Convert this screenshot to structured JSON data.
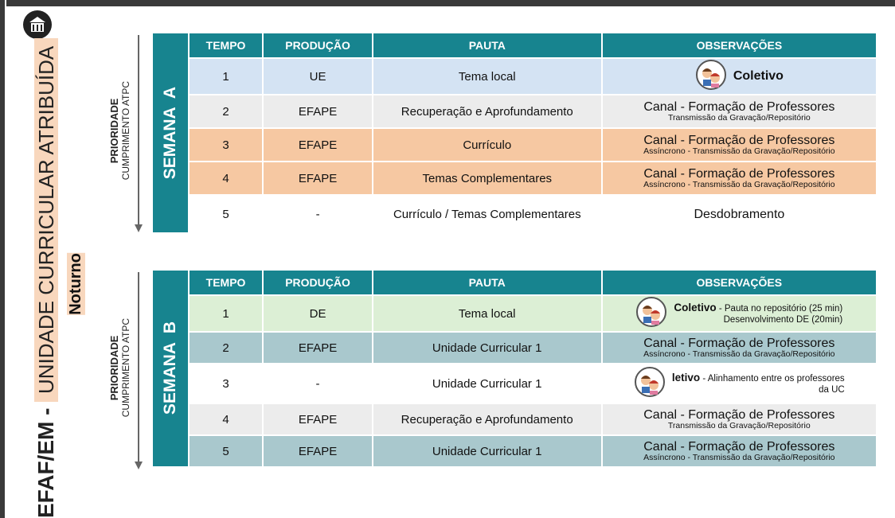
{
  "sidebar": {
    "title_bold": "EFAF/EM -",
    "title": "UNIDADE CURRICULAR ATRIBUÍDA",
    "subtitle": "Noturno"
  },
  "weeks": [
    {
      "label": "SEMANA  A",
      "priority": "PRIORIDADE",
      "priority_sub": "CUMPRIMENTO ATPC",
      "headers": [
        "TEMPO",
        "PRODUÇÃO",
        "PAUTA",
        "OBSERVAÇÕES"
      ],
      "rows": [
        {
          "tempo": 1,
          "producao": "UE",
          "pauta": "Tema local",
          "obs": {
            "strong": "Coletivo"
          }
        },
        {
          "tempo": 2,
          "producao": "EFAPE",
          "pauta": "Recuperação e Aprofundamento",
          "obs": {
            "main": "Canal - Formação de Professores",
            "sub": "Transmissão da Gravação/Repositório"
          }
        },
        {
          "tempo": 3,
          "producao": "EFAPE",
          "pauta": "Currículo",
          "obs": {
            "main": "Canal - Formação de Professores",
            "sub": "Assíncrono - Transmissão da Gravação/Repositório"
          }
        },
        {
          "tempo": 4,
          "producao": "EFAPE",
          "pauta": "Temas Complementares",
          "obs": {
            "main": "Canal - Formação de Professores",
            "sub": "Assíncrono - Transmissão da Gravação/Repositório"
          }
        },
        {
          "tempo": 5,
          "producao": "-",
          "pauta": "Currículo / Temas Complementares",
          "obs": {
            "main": "Desdobramento"
          }
        }
      ]
    },
    {
      "label": "SEMANA  B",
      "priority": "PRIORIDADE",
      "priority_sub": "CUMPRIMENTO ATPC",
      "headers": [
        "TEMPO",
        "PRODUÇÃO",
        "PAUTA",
        "OBSERVAÇÕES"
      ],
      "rows": [
        {
          "tempo": 1,
          "producao": "DE",
          "pauta": "Tema local",
          "obs": {
            "strong": "Coletivo",
            "text": " - Pauta no repositório (25 min)",
            "line2": "Desenvolvimento DE (20min)"
          }
        },
        {
          "tempo": 2,
          "producao": "EFAPE",
          "pauta": "Unidade Curricular 1",
          "obs": {
            "main": "Canal - Formação de Professores",
            "sub": "Assíncrono - Transmissão da Gravação/Repositório"
          }
        },
        {
          "tempo": 3,
          "producao": "-",
          "pauta": "Unidade Curricular 1",
          "obs": {
            "strong": "letivo",
            "text": " - Alinhamento entre os professores",
            "line2": "da UC"
          }
        },
        {
          "tempo": 4,
          "producao": "EFAPE",
          "pauta": "Recuperação e Aprofundamento",
          "obs": {
            "main": "Canal - Formação de Professores",
            "sub": "Transmissão da Gravação/Repositório"
          }
        },
        {
          "tempo": 5,
          "producao": "EFAPE",
          "pauta": "Unidade Curricular 1",
          "obs": {
            "main": "Canal - Formação de Professores",
            "sub": "Assíncrono - Transmissão da Gravação/Repositório"
          }
        }
      ]
    }
  ]
}
